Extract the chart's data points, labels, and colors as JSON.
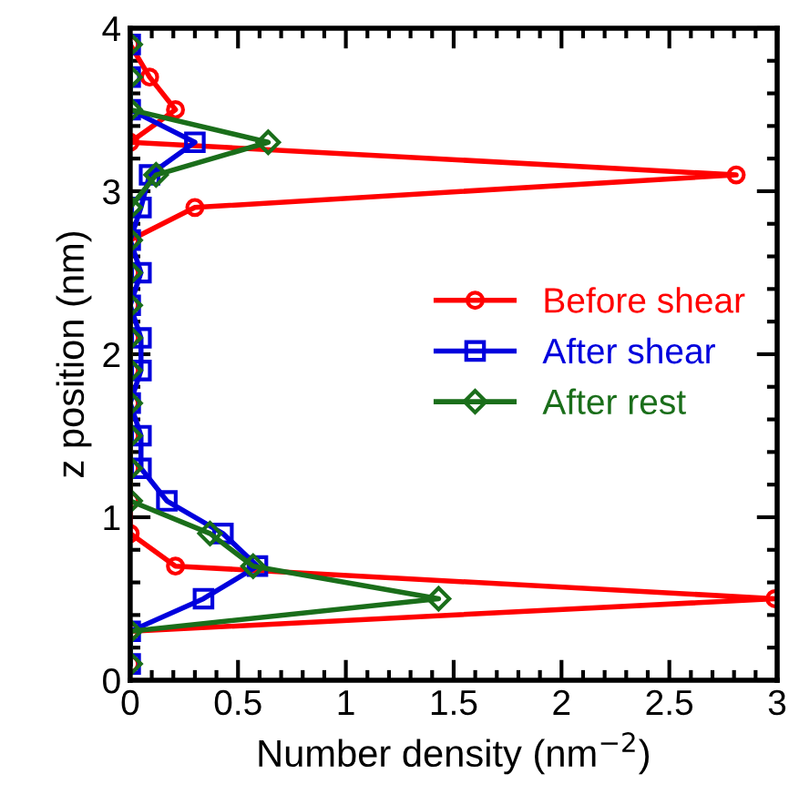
{
  "chart_data": {
    "type": "line",
    "xlabel": "Number density (nm$^{−2}$)",
    "ylabel": "z position (nm)",
    "orientation": "horizontal",
    "x": [
      0.1,
      0.3,
      0.5,
      0.7,
      0.9,
      1.1,
      1.3,
      1.5,
      1.7,
      1.9,
      2.1,
      2.3,
      2.5,
      2.7,
      2.9,
      3.1,
      3.3,
      3.5,
      3.7,
      3.9
    ],
    "series": [
      {
        "name": "Before shear",
        "color": "#ff0000",
        "marker": "circle",
        "values": [
          0,
          0,
          2.99,
          0.21,
          0,
          0,
          0,
          0,
          0,
          0,
          0,
          0,
          0,
          0,
          0.3,
          2.81,
          0,
          0.21,
          0.09,
          0
        ]
      },
      {
        "name": "After shear",
        "color": "#0000dd",
        "marker": "square",
        "values": [
          0,
          0,
          0.34,
          0.59,
          0.43,
          0.17,
          0.05,
          0.05,
          0,
          0.05,
          0.05,
          0,
          0.05,
          0,
          0.05,
          0.09,
          0.3,
          0,
          0,
          0
        ]
      },
      {
        "name": "After rest",
        "color": "#1a6e1a",
        "marker": "diamond",
        "values": [
          0,
          0,
          1.43,
          0.57,
          0.37,
          0,
          0,
          0,
          0,
          0,
          0,
          0,
          0,
          0,
          0,
          0.12,
          0.64,
          0,
          0,
          0
        ]
      }
    ],
    "xlim": [
      0,
      3
    ],
    "xticks": [
      0,
      0.5,
      1,
      1.5,
      2,
      2.5,
      3
    ],
    "ylim": [
      0,
      4
    ],
    "yticks": [
      0,
      1,
      2,
      3,
      4
    ],
    "grid": false,
    "legend": "right",
    "line_style": "solid"
  }
}
